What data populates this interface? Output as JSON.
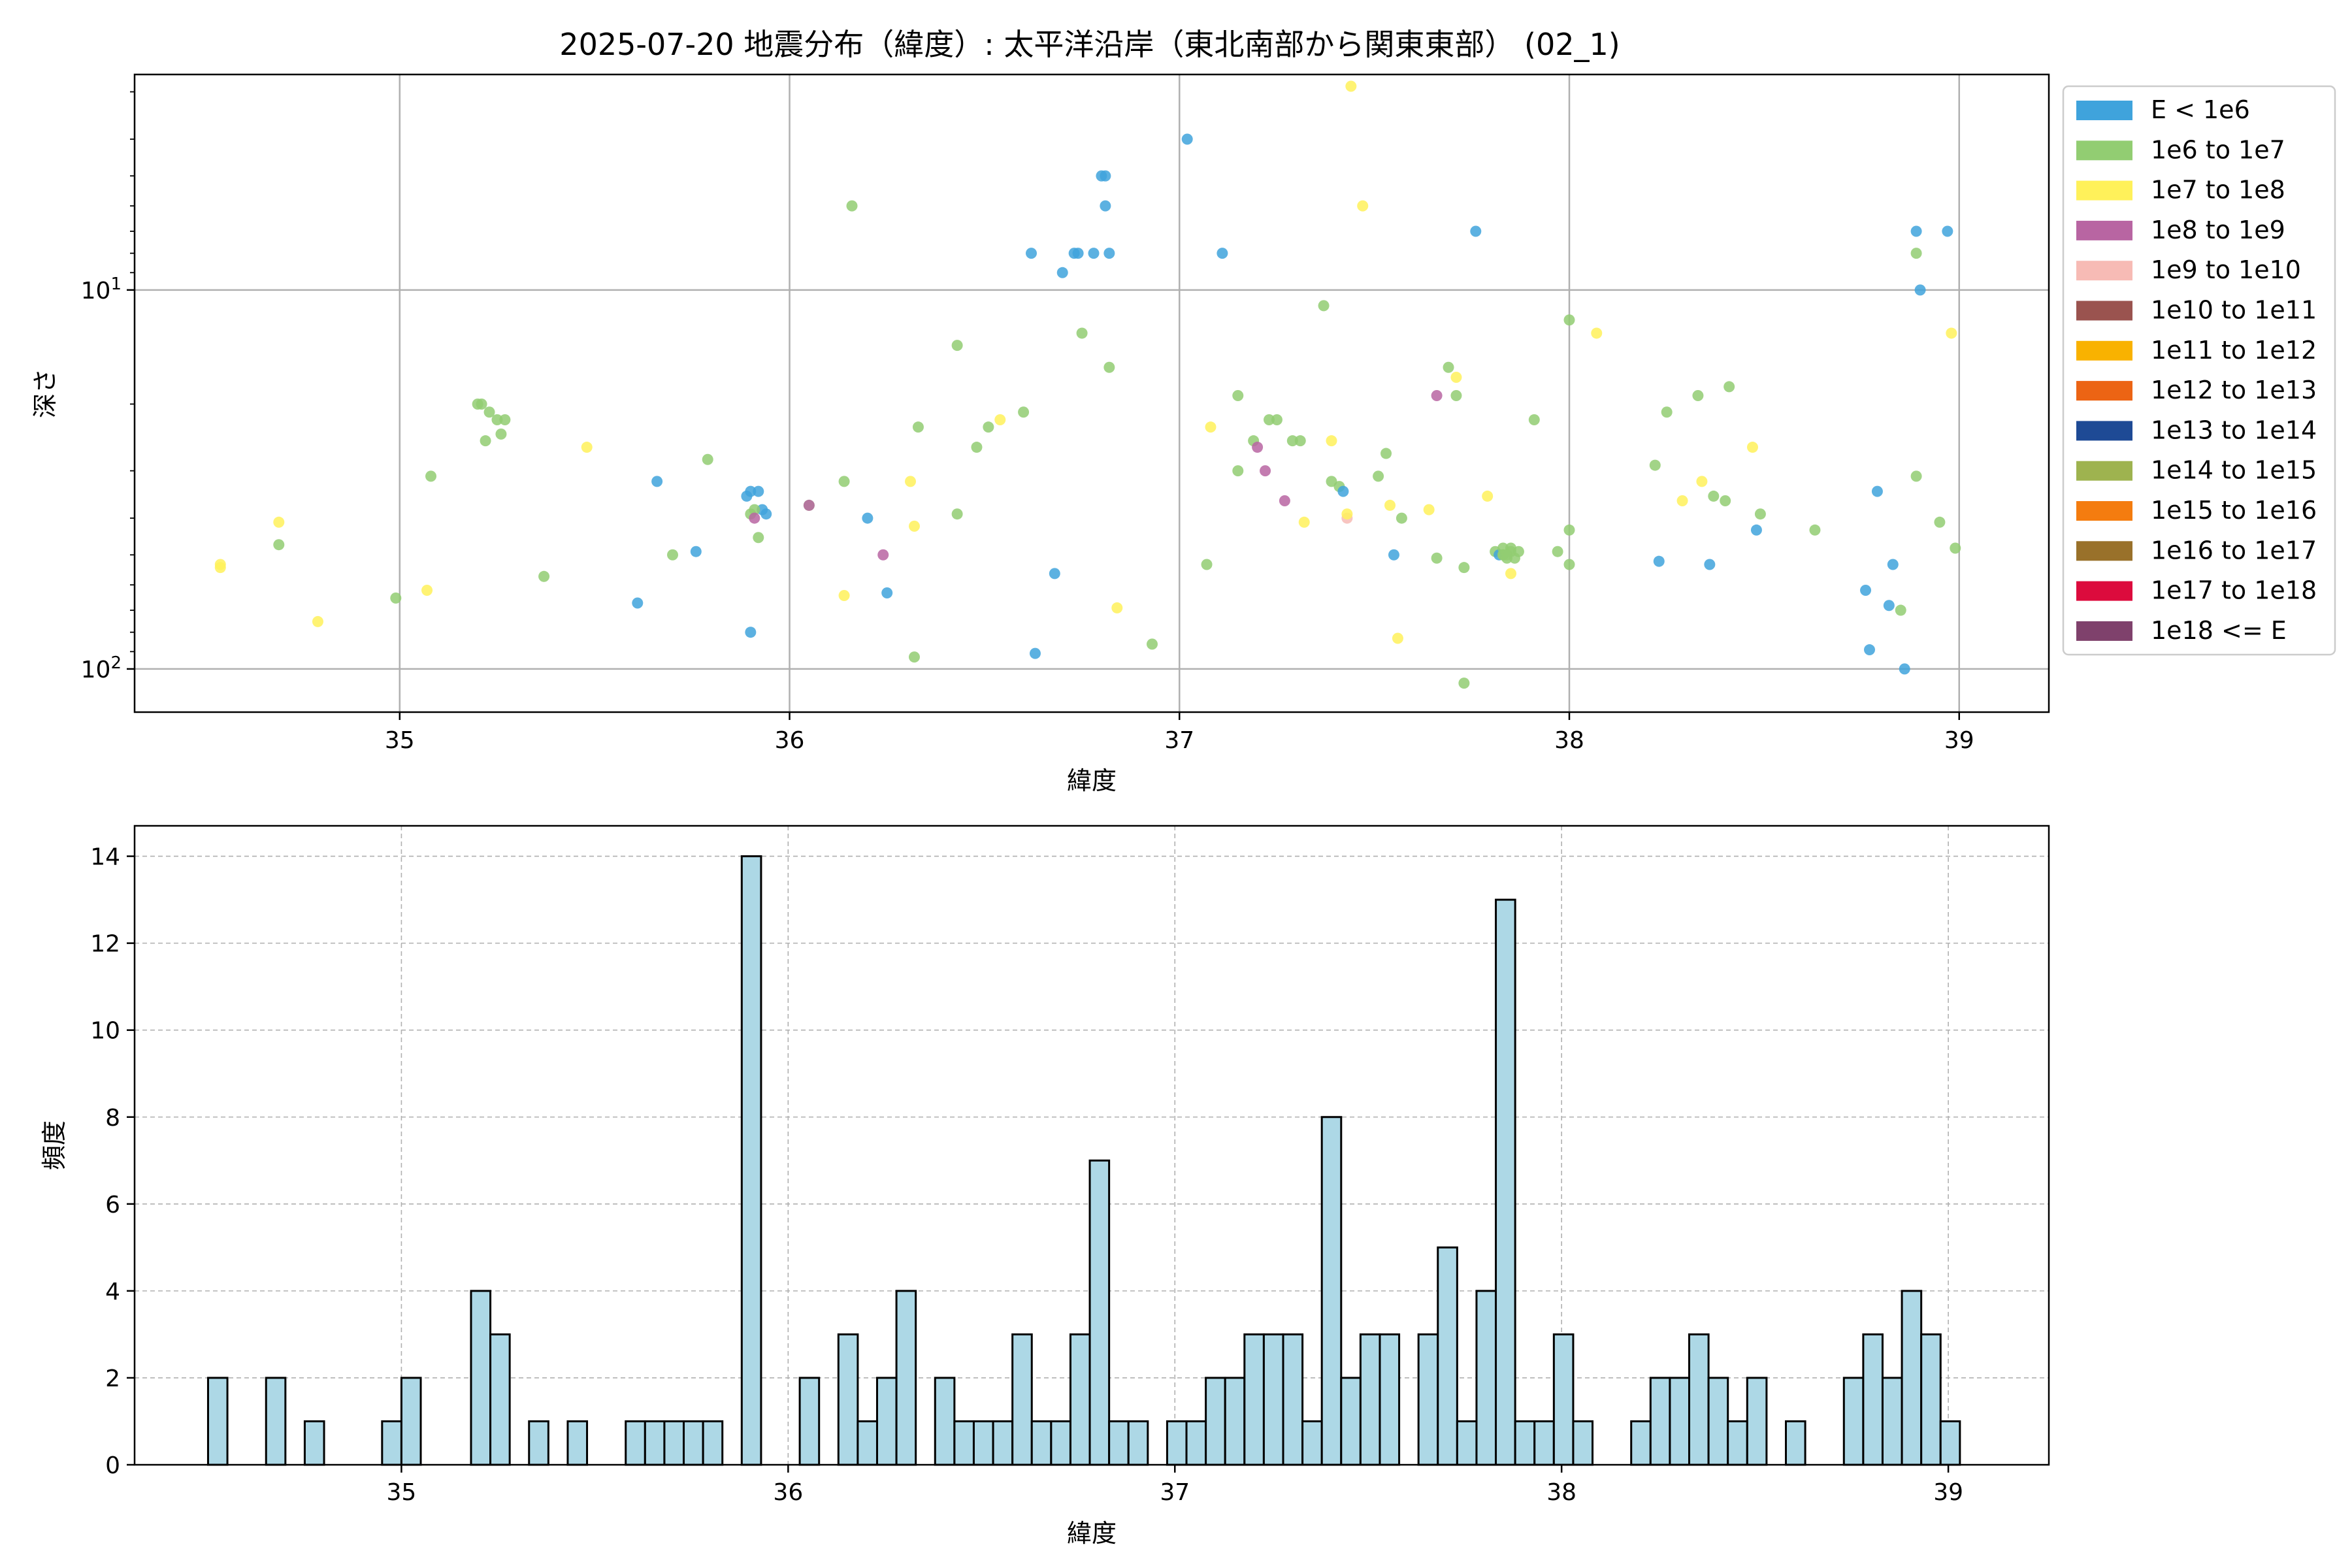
{
  "title": "2025-07-20 地震分布（緯度）: 太平洋沿岸（東北南部から関東東部） (02_1)",
  "chart_data": [
    {
      "type": "scatter",
      "xlabel": "緯度",
      "ylabel": "深さ",
      "x_ticks": [
        "35",
        "36",
        "37",
        "38",
        "39"
      ],
      "y_ticks": [
        "10^1",
        "10^2"
      ],
      "xlim": [
        34.32,
        39.23
      ],
      "ylim": [
        130,
        2.7
      ],
      "y_scale": "log (inverted, depth increases downward)",
      "grid": true,
      "legend": {
        "placement": "outside-right",
        "entries": [
          {
            "label": "E < 1e6",
            "color": "#3fa3dc"
          },
          {
            "label": "1e6 to 1e7",
            "color": "#92cd72"
          },
          {
            "label": "1e7 to 1e8",
            "color": "#fff15a"
          },
          {
            "label": "1e8 to 1e9",
            "color": "#b865a2"
          },
          {
            "label": "1e9 to 1e10",
            "color": "#f7bbb5"
          },
          {
            "label": "1e10 to 1e11",
            "color": "#9a534f"
          },
          {
            "label": "1e11 to 1e12",
            "color": "#f9b200"
          },
          {
            "label": "1e12 to 1e13",
            "color": "#ec6414"
          },
          {
            "label": "1e13 to 1e14",
            "color": "#1e4a95"
          },
          {
            "label": "1e14 to 1e15",
            "color": "#9eb34f"
          },
          {
            "label": "1e15 to 1e16",
            "color": "#f47c0f"
          },
          {
            "label": "1e16 to 1e17",
            "color": "#99712a"
          },
          {
            "label": "1e17 to 1e18",
            "color": "#dc0b3d"
          },
          {
            "label": "1e18 <= E",
            "color": "#7f416c"
          }
        ]
      },
      "points": [
        {
          "x": 34.54,
          "y": 54,
          "c": 2
        },
        {
          "x": 34.54,
          "y": 53,
          "c": 2
        },
        {
          "x": 34.69,
          "y": 41,
          "c": 2
        },
        {
          "x": 34.69,
          "y": 47,
          "c": 1
        },
        {
          "x": 34.79,
          "y": 75,
          "c": 2
        },
        {
          "x": 34.99,
          "y": 65,
          "c": 1
        },
        {
          "x": 35.07,
          "y": 62,
          "c": 2
        },
        {
          "x": 35.08,
          "y": 31,
          "c": 1
        },
        {
          "x": 35.2,
          "y": 20,
          "c": 1
        },
        {
          "x": 35.21,
          "y": 20,
          "c": 1
        },
        {
          "x": 35.23,
          "y": 21,
          "c": 1
        },
        {
          "x": 35.25,
          "y": 22,
          "c": 1
        },
        {
          "x": 35.27,
          "y": 22,
          "c": 1
        },
        {
          "x": 35.22,
          "y": 25,
          "c": 1
        },
        {
          "x": 35.26,
          "y": 24,
          "c": 1
        },
        {
          "x": 35.37,
          "y": 57,
          "c": 1
        },
        {
          "x": 35.48,
          "y": 26,
          "c": 2
        },
        {
          "x": 35.61,
          "y": 67,
          "c": 0
        },
        {
          "x": 35.66,
          "y": 32,
          "c": 0
        },
        {
          "x": 35.7,
          "y": 50,
          "c": 1
        },
        {
          "x": 35.76,
          "y": 49,
          "c": 0
        },
        {
          "x": 35.79,
          "y": 28,
          "c": 1
        },
        {
          "x": 35.89,
          "y": 35,
          "c": 0
        },
        {
          "x": 35.9,
          "y": 34,
          "c": 0
        },
        {
          "x": 35.92,
          "y": 34,
          "c": 0
        },
        {
          "x": 35.93,
          "y": 38,
          "c": 0
        },
        {
          "x": 35.94,
          "y": 39,
          "c": 0
        },
        {
          "x": 35.91,
          "y": 38,
          "c": 1
        },
        {
          "x": 35.9,
          "y": 39,
          "c": 1
        },
        {
          "x": 35.92,
          "y": 45,
          "c": 1
        },
        {
          "x": 35.9,
          "y": 80,
          "c": 0
        },
        {
          "x": 35.91,
          "y": 40,
          "c": 3
        },
        {
          "x": 36.05,
          "y": 37,
          "c": 1
        },
        {
          "x": 36.05,
          "y": 37,
          "c": 3
        },
        {
          "x": 36.14,
          "y": 32,
          "c": 1
        },
        {
          "x": 36.16,
          "y": 6.0,
          "c": 1
        },
        {
          "x": 36.14,
          "y": 64,
          "c": 2
        },
        {
          "x": 36.2,
          "y": 40,
          "c": 0
        },
        {
          "x": 36.24,
          "y": 50,
          "c": 3
        },
        {
          "x": 36.25,
          "y": 63,
          "c": 0
        },
        {
          "x": 36.31,
          "y": 32,
          "c": 2
        },
        {
          "x": 36.32,
          "y": 42,
          "c": 2
        },
        {
          "x": 36.33,
          "y": 23,
          "c": 1
        },
        {
          "x": 36.32,
          "y": 93,
          "c": 1
        },
        {
          "x": 36.43,
          "y": 14,
          "c": 1
        },
        {
          "x": 36.43,
          "y": 39,
          "c": 1
        },
        {
          "x": 36.48,
          "y": 26,
          "c": 1
        },
        {
          "x": 36.51,
          "y": 23,
          "c": 1
        },
        {
          "x": 36.54,
          "y": 22,
          "c": 2
        },
        {
          "x": 36.6,
          "y": 21,
          "c": 1
        },
        {
          "x": 36.62,
          "y": 8.0,
          "c": 0
        },
        {
          "x": 36.63,
          "y": 91,
          "c": 0
        },
        {
          "x": 36.68,
          "y": 56,
          "c": 0
        },
        {
          "x": 36.7,
          "y": 9.0,
          "c": 0
        },
        {
          "x": 36.73,
          "y": 8.0,
          "c": 0
        },
        {
          "x": 36.74,
          "y": 8.0,
          "c": 0
        },
        {
          "x": 36.75,
          "y": 13,
          "c": 1
        },
        {
          "x": 36.78,
          "y": 8.0,
          "c": 0
        },
        {
          "x": 36.8,
          "y": 5.0,
          "c": 0
        },
        {
          "x": 36.81,
          "y": 5.0,
          "c": 0
        },
        {
          "x": 36.81,
          "y": 6.0,
          "c": 0
        },
        {
          "x": 36.82,
          "y": 8.0,
          "c": 0
        },
        {
          "x": 36.82,
          "y": 16,
          "c": 1
        },
        {
          "x": 36.84,
          "y": 69,
          "c": 2
        },
        {
          "x": 36.93,
          "y": 86,
          "c": 1
        },
        {
          "x": 37.02,
          "y": 4.0,
          "c": 0
        },
        {
          "x": 37.07,
          "y": 53,
          "c": 1
        },
        {
          "x": 37.08,
          "y": 23,
          "c": 2
        },
        {
          "x": 37.11,
          "y": 8.0,
          "c": 0
        },
        {
          "x": 37.15,
          "y": 19,
          "c": 1
        },
        {
          "x": 37.15,
          "y": 30,
          "c": 1
        },
        {
          "x": 37.19,
          "y": 25,
          "c": 1
        },
        {
          "x": 37.2,
          "y": 26,
          "c": 3
        },
        {
          "x": 37.22,
          "y": 30,
          "c": 3
        },
        {
          "x": 37.23,
          "y": 22,
          "c": 1
        },
        {
          "x": 37.25,
          "y": 22,
          "c": 1
        },
        {
          "x": 37.27,
          "y": 36,
          "c": 3
        },
        {
          "x": 37.29,
          "y": 25,
          "c": 1
        },
        {
          "x": 37.31,
          "y": 25,
          "c": 1
        },
        {
          "x": 37.32,
          "y": 41,
          "c": 2
        },
        {
          "x": 37.37,
          "y": 11,
          "c": 1
        },
        {
          "x": 37.39,
          "y": 25,
          "c": 2
        },
        {
          "x": 37.39,
          "y": 32,
          "c": 1
        },
        {
          "x": 37.41,
          "y": 33,
          "c": 1
        },
        {
          "x": 37.42,
          "y": 34,
          "c": 0
        },
        {
          "x": 37.43,
          "y": 40,
          "c": 4
        },
        {
          "x": 37.43,
          "y": 39,
          "c": 2
        },
        {
          "x": 37.44,
          "y": 2.9,
          "c": 2
        },
        {
          "x": 37.47,
          "y": 6.0,
          "c": 2
        },
        {
          "x": 37.51,
          "y": 31,
          "c": 1
        },
        {
          "x": 37.53,
          "y": 27,
          "c": 1
        },
        {
          "x": 37.54,
          "y": 37,
          "c": 2
        },
        {
          "x": 37.55,
          "y": 50,
          "c": 0
        },
        {
          "x": 37.57,
          "y": 40,
          "c": 1
        },
        {
          "x": 37.56,
          "y": 83,
          "c": 2
        },
        {
          "x": 37.64,
          "y": 38,
          "c": 2
        },
        {
          "x": 37.66,
          "y": 51,
          "c": 1
        },
        {
          "x": 37.66,
          "y": 19,
          "c": 3
        },
        {
          "x": 37.69,
          "y": 16,
          "c": 1
        },
        {
          "x": 37.71,
          "y": 19,
          "c": 1
        },
        {
          "x": 37.71,
          "y": 17,
          "c": 2
        },
        {
          "x": 37.73,
          "y": 54,
          "c": 1
        },
        {
          "x": 37.73,
          "y": 109,
          "c": 1
        },
        {
          "x": 37.76,
          "y": 7.0,
          "c": 0
        },
        {
          "x": 37.79,
          "y": 35,
          "c": 2
        },
        {
          "x": 37.81,
          "y": 49,
          "c": 1
        },
        {
          "x": 37.82,
          "y": 50,
          "c": 0
        },
        {
          "x": 37.83,
          "y": 48,
          "c": 1
        },
        {
          "x": 37.84,
          "y": 50,
          "c": 1
        },
        {
          "x": 37.85,
          "y": 49,
          "c": 1
        },
        {
          "x": 37.86,
          "y": 51,
          "c": 1
        },
        {
          "x": 37.83,
          "y": 50,
          "c": 1
        },
        {
          "x": 37.85,
          "y": 56,
          "c": 2
        },
        {
          "x": 37.87,
          "y": 49,
          "c": 1
        },
        {
          "x": 37.91,
          "y": 22,
          "c": 1
        },
        {
          "x": 37.83,
          "y": 50,
          "c": 1
        },
        {
          "x": 37.84,
          "y": 51,
          "c": 1
        },
        {
          "x": 37.85,
          "y": 48,
          "c": 1
        },
        {
          "x": 37.97,
          "y": 49,
          "c": 1
        },
        {
          "x": 38.0,
          "y": 12,
          "c": 1
        },
        {
          "x": 38.0,
          "y": 43,
          "c": 1
        },
        {
          "x": 38.0,
          "y": 53,
          "c": 1
        },
        {
          "x": 38.07,
          "y": 13,
          "c": 2
        },
        {
          "x": 38.22,
          "y": 29,
          "c": 1
        },
        {
          "x": 38.23,
          "y": 52,
          "c": 0
        },
        {
          "x": 38.25,
          "y": 21,
          "c": 1
        },
        {
          "x": 38.29,
          "y": 36,
          "c": 2
        },
        {
          "x": 38.33,
          "y": 19,
          "c": 1
        },
        {
          "x": 38.34,
          "y": 32,
          "c": 2
        },
        {
          "x": 38.36,
          "y": 53,
          "c": 0
        },
        {
          "x": 38.37,
          "y": 35,
          "c": 1
        },
        {
          "x": 38.4,
          "y": 36,
          "c": 1
        },
        {
          "x": 38.41,
          "y": 18,
          "c": 1
        },
        {
          "x": 38.47,
          "y": 26,
          "c": 2
        },
        {
          "x": 38.49,
          "y": 39,
          "c": 1
        },
        {
          "x": 38.48,
          "y": 43,
          "c": 0
        },
        {
          "x": 38.63,
          "y": 43,
          "c": 1
        },
        {
          "x": 38.76,
          "y": 62,
          "c": 0
        },
        {
          "x": 38.77,
          "y": 89,
          "c": 0
        },
        {
          "x": 38.79,
          "y": 34,
          "c": 0
        },
        {
          "x": 38.82,
          "y": 68,
          "c": 0
        },
        {
          "x": 38.83,
          "y": 53,
          "c": 0
        },
        {
          "x": 38.85,
          "y": 70,
          "c": 1
        },
        {
          "x": 38.86,
          "y": 100,
          "c": 0
        },
        {
          "x": 38.89,
          "y": 7.0,
          "c": 0
        },
        {
          "x": 38.89,
          "y": 8.0,
          "c": 1
        },
        {
          "x": 38.89,
          "y": 31,
          "c": 1
        },
        {
          "x": 38.9,
          "y": 10,
          "c": 0
        },
        {
          "x": 38.95,
          "y": 41,
          "c": 1
        },
        {
          "x": 38.97,
          "y": 7.0,
          "c": 0
        },
        {
          "x": 38.98,
          "y": 13,
          "c": 2
        },
        {
          "x": 38.99,
          "y": 48,
          "c": 1
        }
      ]
    },
    {
      "type": "bar",
      "xlabel": "緯度",
      "ylabel": "頻度",
      "x_ticks": [
        "35",
        "36",
        "37",
        "38",
        "39"
      ],
      "y_ticks": [
        "0",
        "2",
        "4",
        "6",
        "8",
        "10",
        "12",
        "14"
      ],
      "xlim": [
        34.31,
        39.26
      ],
      "ylim": [
        0,
        14.7
      ],
      "bin_width": 0.05,
      "bar_color": "#add8e6",
      "grid": "dashed",
      "bins": [
        {
          "x0": 34.5,
          "n": 2
        },
        {
          "x0": 34.65,
          "n": 2
        },
        {
          "x0": 34.75,
          "n": 1
        },
        {
          "x0": 34.95,
          "n": 1
        },
        {
          "x0": 35.0,
          "n": 2
        },
        {
          "x0": 35.18,
          "n": 4
        },
        {
          "x0": 35.23,
          "n": 3
        },
        {
          "x0": 35.33,
          "n": 1
        },
        {
          "x0": 35.43,
          "n": 1
        },
        {
          "x0": 35.58,
          "n": 1
        },
        {
          "x0": 35.63,
          "n": 1
        },
        {
          "x0": 35.68,
          "n": 1
        },
        {
          "x0": 35.73,
          "n": 1
        },
        {
          "x0": 35.78,
          "n": 1
        },
        {
          "x0": 35.88,
          "n": 14
        },
        {
          "x0": 36.03,
          "n": 2
        },
        {
          "x0": 36.13,
          "n": 3
        },
        {
          "x0": 36.18,
          "n": 1
        },
        {
          "x0": 36.23,
          "n": 2
        },
        {
          "x0": 36.28,
          "n": 4
        },
        {
          "x0": 36.38,
          "n": 2
        },
        {
          "x0": 36.43,
          "n": 1
        },
        {
          "x0": 36.48,
          "n": 1
        },
        {
          "x0": 36.53,
          "n": 1
        },
        {
          "x0": 36.58,
          "n": 3
        },
        {
          "x0": 36.63,
          "n": 1
        },
        {
          "x0": 36.68,
          "n": 1
        },
        {
          "x0": 36.73,
          "n": 3
        },
        {
          "x0": 36.78,
          "n": 7
        },
        {
          "x0": 36.83,
          "n": 1
        },
        {
          "x0": 36.88,
          "n": 1
        },
        {
          "x0": 36.98,
          "n": 1
        },
        {
          "x0": 37.03,
          "n": 1
        },
        {
          "x0": 37.08,
          "n": 2
        },
        {
          "x0": 37.13,
          "n": 2
        },
        {
          "x0": 37.18,
          "n": 3
        },
        {
          "x0": 37.23,
          "n": 3
        },
        {
          "x0": 37.28,
          "n": 3
        },
        {
          "x0": 37.33,
          "n": 1
        },
        {
          "x0": 37.38,
          "n": 8
        },
        {
          "x0": 37.43,
          "n": 2
        },
        {
          "x0": 37.48,
          "n": 3
        },
        {
          "x0": 37.53,
          "n": 3
        },
        {
          "x0": 37.63,
          "n": 3
        },
        {
          "x0": 37.68,
          "n": 5
        },
        {
          "x0": 37.73,
          "n": 1
        },
        {
          "x0": 37.78,
          "n": 4
        },
        {
          "x0": 37.83,
          "n": 13
        },
        {
          "x0": 37.88,
          "n": 1
        },
        {
          "x0": 37.93,
          "n": 1
        },
        {
          "x0": 37.98,
          "n": 3
        },
        {
          "x0": 38.03,
          "n": 1
        },
        {
          "x0": 38.18,
          "n": 1
        },
        {
          "x0": 38.23,
          "n": 2
        },
        {
          "x0": 38.28,
          "n": 2
        },
        {
          "x0": 38.33,
          "n": 3
        },
        {
          "x0": 38.38,
          "n": 2
        },
        {
          "x0": 38.43,
          "n": 1
        },
        {
          "x0": 38.48,
          "n": 2
        },
        {
          "x0": 38.58,
          "n": 1
        },
        {
          "x0": 38.73,
          "n": 2
        },
        {
          "x0": 38.78,
          "n": 3
        },
        {
          "x0": 38.83,
          "n": 2
        },
        {
          "x0": 38.88,
          "n": 4
        },
        {
          "x0": 38.93,
          "n": 3
        },
        {
          "x0": 38.98,
          "n": 1
        }
      ]
    }
  ]
}
